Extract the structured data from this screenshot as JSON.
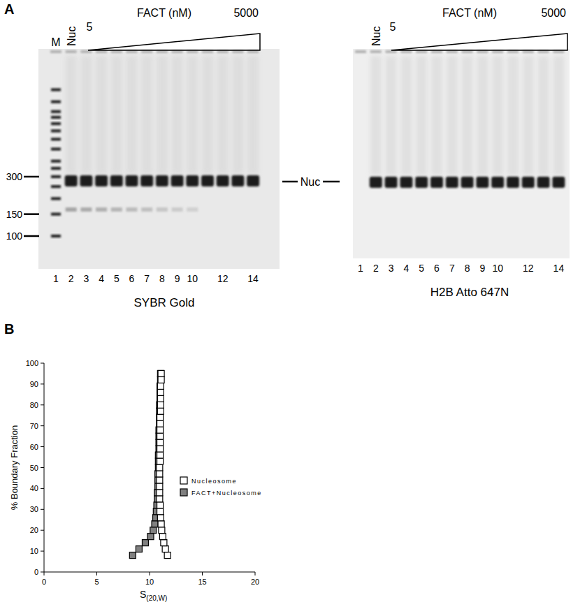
{
  "panel_a": {
    "label": "A",
    "band_label": "Nuc",
    "gels": [
      {
        "stain": "SYBR Gold",
        "marker_lane": "M",
        "nuc_lane": "Nuc",
        "concentration_label": "FACT (nM)",
        "concentration_low": 5,
        "concentration_high": 5000,
        "lanes": [
          1,
          2,
          3,
          4,
          5,
          6,
          7,
          8,
          9,
          10,
          null,
          12,
          null,
          14
        ],
        "size_markers": [
          300,
          150,
          100
        ]
      },
      {
        "stain": "H2B Atto 647N",
        "nuc_lane": "Nuc",
        "concentration_label": "FACT (nM)",
        "concentration_low": 5,
        "concentration_high": 5000,
        "lanes": [
          1,
          2,
          3,
          4,
          5,
          6,
          7,
          8,
          9,
          10,
          null,
          12,
          null,
          14
        ]
      }
    ]
  },
  "panel_b": {
    "label": "B"
  },
  "chart_data": {
    "type": "scatter",
    "x_label": "S",
    "x_label_subscript": "(20,W)",
    "y_label": "% Boundary Fraction",
    "xlim": [
      0,
      20
    ],
    "xticks": [
      0,
      5,
      10,
      15,
      20
    ],
    "ylim": [
      0,
      100
    ],
    "yticks": [
      0,
      10,
      20,
      30,
      40,
      50,
      60,
      70,
      80,
      90,
      100
    ],
    "grid": false,
    "legend": "center right",
    "series": [
      {
        "name": "Nucleosome",
        "color": "#ffffff",
        "marker": "square",
        "x": [
          11.7,
          11.5,
          11.35,
          11.25,
          11.15,
          11.1,
          11.05,
          11.0,
          11.0,
          10.95,
          10.95,
          10.95,
          10.95,
          10.95,
          10.95,
          11.0,
          11.0,
          11.0,
          11.0,
          11.0,
          11.0,
          11.0,
          11.0,
          11.05,
          11.05,
          11.05,
          11.05,
          11.05,
          11.1,
          11.1
        ],
        "values": [
          8,
          11,
          14,
          17,
          20,
          23,
          26,
          29,
          32,
          35,
          38,
          41,
          44,
          47,
          50,
          53,
          56,
          59,
          62,
          65,
          68,
          71,
          74,
          77,
          80,
          83,
          86,
          89,
          92,
          95
        ]
      },
      {
        "name": "FACT+Nucleosome",
        "color": "#808080",
        "marker": "square",
        "x": [
          8.4,
          9.0,
          9.6,
          10.1,
          10.35,
          10.5,
          10.6,
          10.65,
          10.7,
          10.75,
          10.75,
          10.8,
          10.8,
          10.8,
          10.85,
          10.85,
          10.85,
          10.9,
          10.9,
          10.9,
          10.9,
          10.95,
          10.95,
          10.95,
          10.95,
          11.0,
          11.0,
          11.0,
          11.05,
          11.05
        ],
        "values": [
          8,
          11,
          14,
          17,
          20,
          23,
          26,
          29,
          32,
          35,
          38,
          41,
          44,
          47,
          50,
          53,
          56,
          59,
          62,
          65,
          68,
          71,
          74,
          77,
          80,
          83,
          86,
          89,
          92,
          95
        ]
      }
    ]
  }
}
